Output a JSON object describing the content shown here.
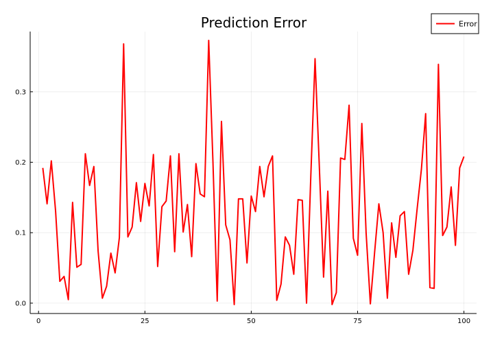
{
  "chart_data": {
    "type": "line",
    "title": "Prediction Error",
    "xlabel": "",
    "ylabel": "",
    "xlim": [
      -1.97,
      102.97
    ],
    "ylim": [
      -0.0147,
      0.3855
    ],
    "xticks": [
      0,
      25,
      50,
      75,
      100
    ],
    "yticks": [
      0.0,
      0.1,
      0.2,
      0.3
    ],
    "xtick_labels": [
      "0",
      "25",
      "50",
      "75",
      "100"
    ],
    "ytick_labels": [
      "0.0",
      "0.1",
      "0.2",
      "0.3"
    ],
    "grid": true,
    "legend": "top-right",
    "series": [
      {
        "name": "Error",
        "color": "#ff0000",
        "x": [
          1,
          2,
          3,
          4,
          5,
          6,
          7,
          8,
          9,
          10,
          11,
          12,
          13,
          14,
          15,
          16,
          17,
          18,
          19,
          20,
          21,
          22,
          23,
          24,
          25,
          26,
          27,
          28,
          29,
          30,
          31,
          32,
          33,
          34,
          35,
          36,
          37,
          38,
          39,
          40,
          41,
          42,
          43,
          44,
          45,
          46,
          47,
          48,
          49,
          50,
          51,
          52,
          53,
          54,
          55,
          56,
          57,
          58,
          59,
          60,
          61,
          62,
          63,
          64,
          65,
          66,
          67,
          68,
          69,
          70,
          71,
          72,
          73,
          74,
          75,
          76,
          77,
          78,
          79,
          80,
          81,
          82,
          83,
          84,
          85,
          86,
          87,
          88,
          89,
          90,
          91,
          92,
          93,
          94,
          95,
          96,
          97,
          98,
          99,
          100
        ],
        "values": [
          0.192,
          0.141,
          0.202,
          0.131,
          0.031,
          0.038,
          0.005,
          0.143,
          0.051,
          0.055,
          0.212,
          0.167,
          0.194,
          0.074,
          0.007,
          0.024,
          0.071,
          0.043,
          0.093,
          0.368,
          0.094,
          0.108,
          0.171,
          0.116,
          0.17,
          0.138,
          0.211,
          0.052,
          0.137,
          0.145,
          0.209,
          0.073,
          0.212,
          0.101,
          0.14,
          0.066,
          0.198,
          0.155,
          0.151,
          0.373,
          0.2,
          0.003,
          0.258,
          0.111,
          0.09,
          -0.002,
          0.148,
          0.148,
          0.057,
          0.152,
          0.13,
          0.194,
          0.151,
          0.194,
          0.209,
          0.004,
          0.027,
          0.094,
          0.082,
          0.041,
          0.147,
          0.146,
          0.0,
          0.18,
          0.347,
          0.195,
          0.037,
          0.159,
          -0.002,
          0.015,
          0.206,
          0.204,
          0.281,
          0.092,
          0.068,
          0.255,
          0.1,
          -0.001,
          0.072,
          0.141,
          0.1,
          0.007,
          0.114,
          0.065,
          0.124,
          0.13,
          0.041,
          0.075,
          0.134,
          0.19,
          0.269,
          0.022,
          0.021,
          0.339,
          0.096,
          0.108,
          0.165,
          0.082,
          0.192,
          0.208
        ]
      }
    ]
  }
}
